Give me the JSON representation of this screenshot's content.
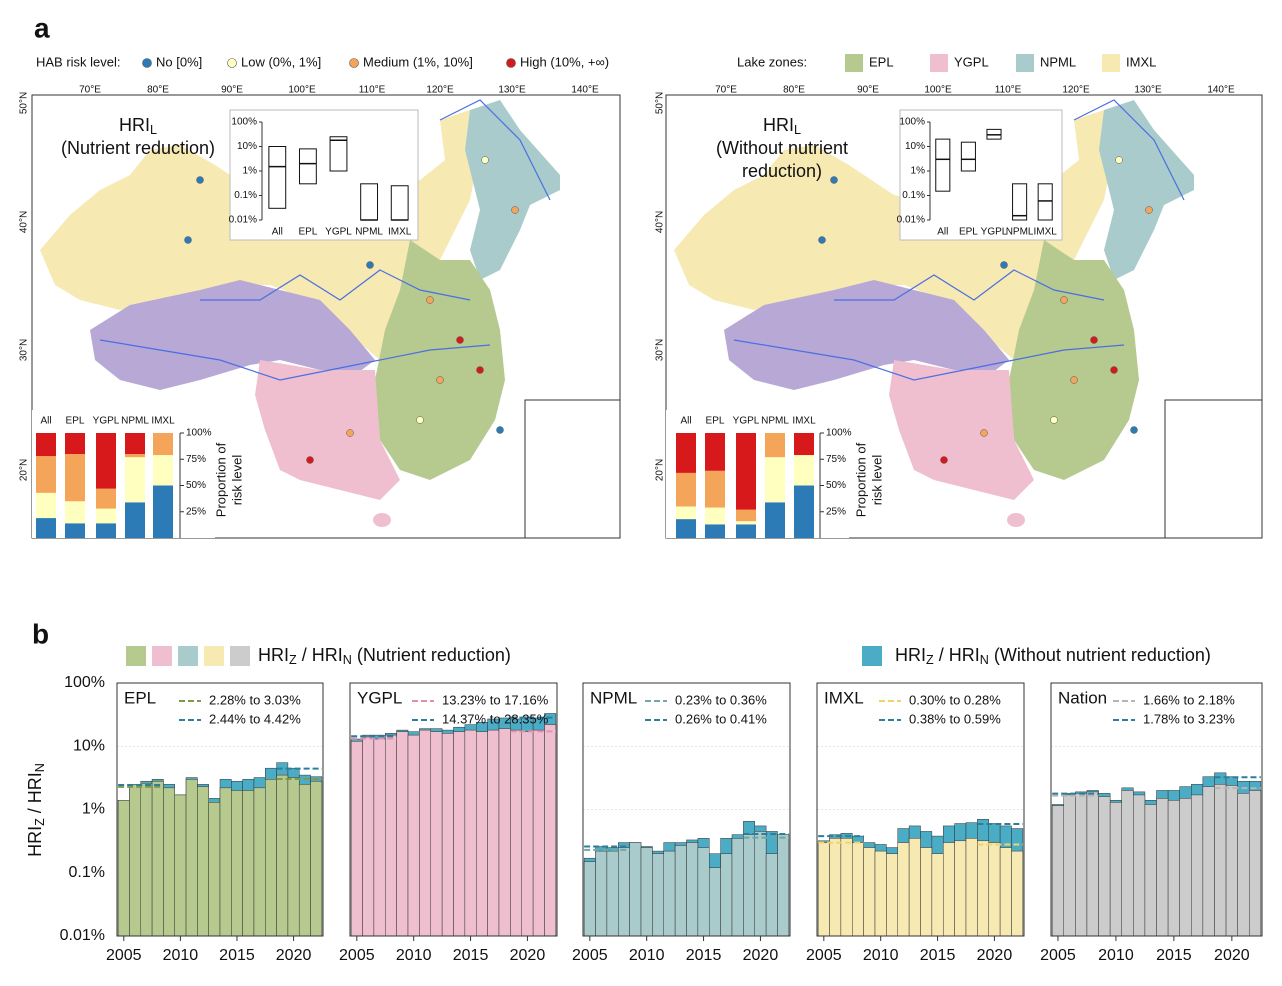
{
  "panel_a": {
    "label": "a",
    "risk_legend": {
      "title": "HAB risk level:",
      "items": [
        {
          "name": "No [0%]",
          "color": "#2c7bb6"
        },
        {
          "name": "Low (0%, 1%]",
          "color": "#ffffbf"
        },
        {
          "name": "Medium (1%, 10%]",
          "color": "#f4a55a"
        },
        {
          "name": "High (10%, +∞)",
          "color": "#d7191c"
        }
      ]
    },
    "zone_legend": {
      "title": "Lake zones:",
      "items": [
        {
          "name": "EPL",
          "color": "#b6c98f"
        },
        {
          "name": "YGPL",
          "color": "#efbfd0"
        },
        {
          "name": "NPML",
          "color": "#a9cbcb"
        },
        {
          "name": "IMXL",
          "color": "#f7e9b2"
        }
      ]
    },
    "lon_labels": [
      "70°E",
      "80°E",
      "90°E",
      "100°E",
      "110°E",
      "120°E",
      "130°E",
      "140°E"
    ],
    "lat_labels": [
      "50°N",
      "40°N",
      "30°N",
      "20°N"
    ],
    "maps": [
      {
        "title_parts": [
          "HRI",
          "L"
        ],
        "title_lines": [
          "(Nutrient reduction)"
        ]
      },
      {
        "title_parts": [
          "HRI",
          "L"
        ],
        "title_lines": [
          "(Without nutrient",
          "reduction)"
        ]
      }
    ],
    "stack_ylabel": [
      "Proportion of",
      "risk level"
    ]
  },
  "panel_b": {
    "label": "b",
    "legend_left": [
      "HRI",
      "Z",
      " / HRI",
      "N",
      " (Nutrient reduction)"
    ],
    "legend_right": [
      "HRI",
      "Z",
      " / HRI",
      "N",
      "  (Without nutrient reduction)"
    ],
    "ylabel": [
      "HRI",
      "Z",
      " / HRI",
      "N"
    ]
  },
  "chart_data": [
    {
      "type": "box",
      "categories": [
        "All",
        "EPL",
        "YGPL",
        "NPML",
        "IMXL"
      ],
      "q1": [
        0.03,
        0.3,
        1,
        0.01,
        0.01
      ],
      "median": [
        1.5,
        2,
        18,
        0.01,
        0.01
      ],
      "q3": [
        10,
        8,
        25,
        0.3,
        0.25
      ],
      "log_scale": true,
      "ylim": [
        0.01,
        100
      ],
      "yticks": [
        {
          "value": 0.01,
          "label": "0.01%"
        },
        {
          "value": 0.1,
          "label": "0.1%"
        },
        {
          "value": 1,
          "label": "1%"
        },
        {
          "value": 10,
          "label": "10%"
        },
        {
          "value": 100,
          "label": "100%"
        }
      ]
    },
    {
      "type": "box",
      "categories": [
        "All",
        "EPL",
        "YGPL",
        "NPML",
        "IMXL"
      ],
      "q1": [
        0.15,
        1,
        20,
        0.01,
        0.01
      ],
      "median": [
        3,
        3,
        30,
        0.015,
        0.06
      ],
      "q3": [
        20,
        15,
        50,
        0.3,
        0.3
      ],
      "log_scale": true,
      "ylim": [
        0.01,
        100
      ],
      "yticks": [
        {
          "value": 0.01,
          "label": "0.01%"
        },
        {
          "value": 0.1,
          "label": "0.1%"
        },
        {
          "value": 1,
          "label": "1%"
        },
        {
          "value": 10,
          "label": "10%"
        },
        {
          "value": 100,
          "label": "100%"
        }
      ]
    },
    {
      "type": "stacked_bar",
      "categories": [
        "All",
        "EPL",
        "YGPL",
        "NPML",
        "IMXL"
      ],
      "series": [
        {
          "color": "#2c7bb6",
          "values": [
            19,
            14,
            14,
            34,
            50
          ]
        },
        {
          "color": "#ffffbf",
          "values": [
            24,
            21,
            14,
            43,
            29
          ]
        },
        {
          "color": "#f4a55a",
          "values": [
            35,
            45,
            19,
            3,
            21
          ]
        },
        {
          "color": "#d7191c",
          "values": [
            22,
            20,
            53,
            20,
            0
          ]
        }
      ],
      "ylim": [
        0,
        100
      ],
      "yticks": [
        {
          "value": 25,
          "label": "25%"
        },
        {
          "value": 50,
          "label": "50%"
        },
        {
          "value": 75,
          "label": "75%"
        },
        {
          "value": 100,
          "label": "100%"
        }
      ]
    },
    {
      "type": "stacked_bar",
      "categories": [
        "All",
        "EPL",
        "YGPL",
        "NPML",
        "IMXL"
      ],
      "series": [
        {
          "color": "#2c7bb6",
          "values": [
            18,
            13,
            13,
            34,
            50
          ]
        },
        {
          "color": "#ffffbf",
          "values": [
            12,
            16,
            3,
            43,
            29
          ]
        },
        {
          "color": "#f4a55a",
          "values": [
            32,
            35,
            11,
            23,
            0
          ]
        },
        {
          "color": "#d7191c",
          "values": [
            38,
            36,
            73,
            0,
            21
          ]
        }
      ],
      "ylim": [
        0,
        100
      ],
      "yticks": [
        {
          "value": 25,
          "label": "25%"
        },
        {
          "value": 50,
          "label": "50%"
        },
        {
          "value": 75,
          "label": "75%"
        },
        {
          "value": 100,
          "label": "100%"
        }
      ]
    },
    {
      "type": "bar_overlay",
      "title": "EPL",
      "x": [
        2005,
        2006,
        2007,
        2008,
        2009,
        2010,
        2011,
        2012,
        2013,
        2014,
        2015,
        2016,
        2017,
        2018,
        2019,
        2020,
        2021,
        2022
      ],
      "series": [
        {
          "color": "#b6c98f",
          "values": [
            1.4,
            2.5,
            2.6,
            2.8,
            2.2,
            1.7,
            3.0,
            2.3,
            1.3,
            2.2,
            2.0,
            2.0,
            2.2,
            3.0,
            3.5,
            3.2,
            2.5,
            2.8
          ]
        },
        {
          "color": "#4bacc6",
          "values": [
            1.4,
            2.5,
            2.8,
            3.0,
            2.5,
            1.7,
            3.2,
            2.5,
            1.5,
            3.0,
            2.8,
            3.0,
            3.2,
            4.5,
            5.5,
            4.5,
            3.5,
            3.3
          ]
        }
      ],
      "trend_lines": [
        {
          "label": "2.28% to 3.03%",
          "color": "#7f9a4a",
          "start": 2.28,
          "end": 3.03
        },
        {
          "label": "2.44% to 4.42%",
          "color": "#2e7d9a",
          "start": 2.44,
          "end": 4.42
        }
      ],
      "log_scale": true,
      "ylim": [
        0.01,
        100
      ],
      "xlim": [
        2004.4,
        2022.6
      ],
      "xticks": [
        2005,
        2010,
        2015,
        2020
      ],
      "yticks": [
        {
          "value": 0.01,
          "label": "0.01%"
        },
        {
          "value": 0.1,
          "label": "0.1%"
        },
        {
          "value": 1,
          "label": "1%"
        },
        {
          "value": 10,
          "label": "10%"
        },
        {
          "value": 100,
          "label": "100%"
        }
      ],
      "grid": true
    },
    {
      "type": "bar_overlay",
      "title": "YGPL",
      "x": [
        2005,
        2006,
        2007,
        2008,
        2009,
        2010,
        2011,
        2012,
        2013,
        2014,
        2015,
        2016,
        2017,
        2018,
        2019,
        2020,
        2021,
        2022
      ],
      "series": [
        {
          "color": "#efbfd0",
          "values": [
            12,
            14,
            13,
            15,
            17,
            15,
            18,
            17,
            16,
            17,
            18,
            17,
            18,
            19,
            18,
            17,
            18,
            22
          ]
        },
        {
          "color": "#4bacc6",
          "values": [
            13,
            15,
            15,
            16,
            18,
            17,
            19,
            19,
            18,
            20,
            22,
            24,
            27,
            28,
            27,
            29,
            28,
            33
          ]
        }
      ],
      "trend_lines": [
        {
          "label": "13.23% to 17.16%",
          "color": "#e58fb0",
          "start": 13.23,
          "end": 17.16
        },
        {
          "label": "14.37% to 28.35%",
          "color": "#2e7d9a",
          "start": 14.37,
          "end": 28.35
        }
      ],
      "log_scale": true,
      "ylim": [
        0.01,
        100
      ],
      "xlim": [
        2004.4,
        2022.6
      ],
      "xticks": [
        2005,
        2010,
        2015,
        2020
      ],
      "yticks": [
        0.01,
        0.1,
        1,
        10,
        100
      ],
      "tick_labels": false,
      "grid": true
    },
    {
      "type": "bar_overlay",
      "title": "NPML",
      "x": [
        2005,
        2006,
        2007,
        2008,
        2009,
        2010,
        2011,
        2012,
        2013,
        2014,
        2015,
        2016,
        2017,
        2018,
        2019,
        2020,
        2021,
        2022
      ],
      "series": [
        {
          "color": "#a9cbcb",
          "values": [
            0.15,
            0.22,
            0.22,
            0.25,
            0.3,
            0.25,
            0.2,
            0.22,
            0.27,
            0.3,
            0.25,
            0.12,
            0.2,
            0.35,
            0.4,
            0.45,
            0.2,
            0.4
          ]
        },
        {
          "color": "#4bacc6",
          "values": [
            0.17,
            0.26,
            0.25,
            0.3,
            0.3,
            0.26,
            0.22,
            0.3,
            0.3,
            0.33,
            0.35,
            0.2,
            0.35,
            0.4,
            0.65,
            0.55,
            0.45,
            0.4
          ]
        }
      ],
      "trend_lines": [
        {
          "label": "0.23% to 0.36%",
          "color": "#6fa8a8",
          "start": 0.23,
          "end": 0.36
        },
        {
          "label": "0.26% to 0.41%",
          "color": "#2e7d9a",
          "start": 0.26,
          "end": 0.41
        }
      ],
      "log_scale": true,
      "ylim": [
        0.01,
        100
      ],
      "xlim": [
        2004.4,
        2022.6
      ],
      "xticks": [
        2005,
        2010,
        2015,
        2020
      ],
      "yticks": [
        0.01,
        0.1,
        1,
        10,
        100
      ],
      "tick_labels": false,
      "grid": true
    },
    {
      "type": "bar_overlay",
      "title": "IMXL",
      "x": [
        2005,
        2006,
        2007,
        2008,
        2009,
        2010,
        2011,
        2012,
        2013,
        2014,
        2015,
        2016,
        2017,
        2018,
        2019,
        2020,
        2021,
        2022
      ],
      "series": [
        {
          "color": "#f7e9b2",
          "values": [
            0.3,
            0.35,
            0.35,
            0.3,
            0.25,
            0.22,
            0.2,
            0.3,
            0.35,
            0.25,
            0.2,
            0.3,
            0.32,
            0.35,
            0.32,
            0.3,
            0.25,
            0.22
          ]
        },
        {
          "color": "#4bacc6",
          "values": [
            0.32,
            0.4,
            0.42,
            0.38,
            0.3,
            0.28,
            0.25,
            0.5,
            0.55,
            0.45,
            0.38,
            0.55,
            0.6,
            0.62,
            0.7,
            0.6,
            0.55,
            0.5
          ]
        }
      ],
      "trend_lines": [
        {
          "label": "0.30% to 0.28%",
          "color": "#f2d36b",
          "start": 0.3,
          "end": 0.28
        },
        {
          "label": "0.38% to 0.59%",
          "color": "#2e7d9a",
          "start": 0.38,
          "end": 0.59
        }
      ],
      "log_scale": true,
      "ylim": [
        0.01,
        100
      ],
      "xlim": [
        2004.4,
        2022.6
      ],
      "xticks": [
        2005,
        2010,
        2015,
        2020
      ],
      "yticks": [
        0.01,
        0.1,
        1,
        10,
        100
      ],
      "tick_labels": false,
      "grid": true
    },
    {
      "type": "bar_overlay",
      "title": "Nation",
      "x": [
        2005,
        2006,
        2007,
        2008,
        2009,
        2010,
        2011,
        2012,
        2013,
        2014,
        2015,
        2016,
        2017,
        2018,
        2019,
        2020,
        2021,
        2022
      ],
      "series": [
        {
          "color": "#cccccc",
          "values": [
            1.15,
            1.7,
            1.8,
            1.9,
            1.6,
            1.3,
            2.0,
            1.7,
            1.2,
            1.5,
            1.4,
            1.5,
            1.7,
            2.3,
            2.5,
            2.4,
            1.8,
            2.0
          ]
        },
        {
          "color": "#4bacc6",
          "values": [
            1.2,
            1.8,
            1.9,
            2.0,
            1.8,
            1.4,
            2.2,
            1.9,
            1.4,
            2.0,
            2.0,
            2.3,
            2.5,
            3.3,
            3.8,
            3.3,
            2.8,
            2.8
          ]
        }
      ],
      "trend_lines": [
        {
          "label": "1.66% to 2.18%",
          "color": "#b5b5b5",
          "start": 1.66,
          "end": 2.18
        },
        {
          "label": "1.78% to 3.23%",
          "color": "#2e7d9a",
          "start": 1.78,
          "end": 3.23
        }
      ],
      "log_scale": true,
      "ylim": [
        0.01,
        100
      ],
      "xlim": [
        2004.4,
        2022.6
      ],
      "xticks": [
        2005,
        2010,
        2015,
        2020
      ],
      "yticks": [
        0.01,
        0.1,
        1,
        10,
        100
      ],
      "tick_labels": false,
      "grid": true
    }
  ]
}
